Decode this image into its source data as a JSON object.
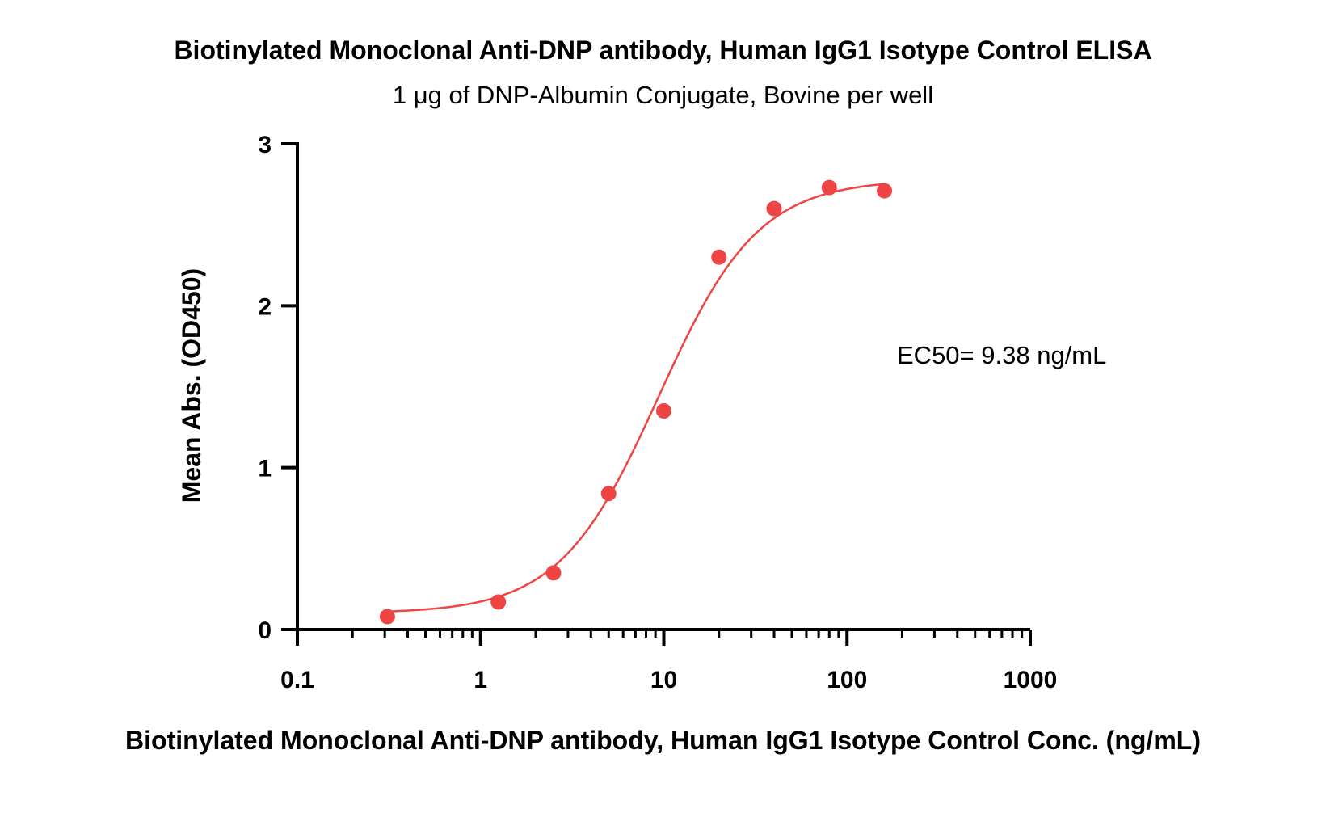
{
  "chart_data": {
    "type": "scatter",
    "title": "Biotinylated Monoclonal Anti-DNP antibody, Human IgG1 Isotype Control ELISA",
    "subtitle": "1 μg of DNP-Albumin Conjugate, Bovine per well",
    "xlabel": "Biotinylated Monoclonal Anti-DNP antibody, Human IgG1 Isotype Control Conc. (ng/mL)",
    "ylabel": "Mean Abs. (OD450)",
    "xscale": "log",
    "xlim": [
      0.1,
      1000
    ],
    "ylim": [
      0,
      3
    ],
    "xticks": [
      0.1,
      1,
      10,
      100,
      1000
    ],
    "xtick_labels": [
      "0.1",
      "1",
      "10",
      "100",
      "1000"
    ],
    "yticks": [
      0,
      1,
      2,
      3
    ],
    "ytick_labels": [
      "0",
      "1",
      "2",
      "3"
    ],
    "series": [
      {
        "name": "Mean Abs.",
        "color": "#ef4444",
        "x": [
          0.31,
          1.25,
          2.5,
          5,
          10,
          20,
          40,
          80,
          160
        ],
        "y": [
          0.08,
          0.17,
          0.35,
          0.84,
          1.35,
          2.3,
          2.6,
          2.73,
          2.71
        ]
      }
    ],
    "fit": {
      "type": "4PL",
      "bottom": 0.1,
      "top": 2.78,
      "ec50": 9.38,
      "hill": 1.6,
      "color": "#ef4444"
    },
    "annotation": "EC50= 9.38 ng/mL",
    "grid": false,
    "legend": "none"
  }
}
